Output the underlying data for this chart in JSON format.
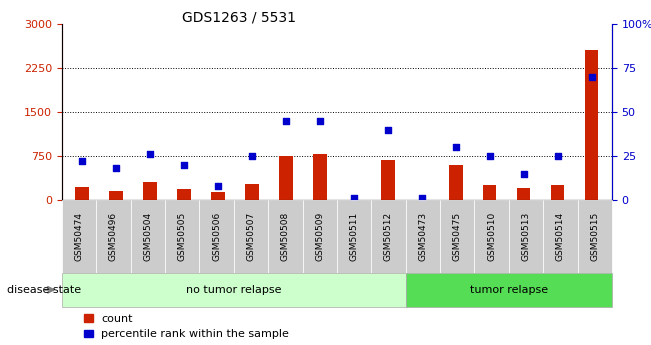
{
  "title": "GDS1263 / 5531",
  "samples": [
    "GSM50474",
    "GSM50496",
    "GSM50504",
    "GSM50505",
    "GSM50506",
    "GSM50507",
    "GSM50508",
    "GSM50509",
    "GSM50511",
    "GSM50512",
    "GSM50473",
    "GSM50475",
    "GSM50510",
    "GSM50513",
    "GSM50514",
    "GSM50515"
  ],
  "counts": [
    220,
    160,
    310,
    190,
    130,
    270,
    760,
    790,
    5,
    680,
    5,
    590,
    260,
    200,
    260,
    2560
  ],
  "percentiles": [
    22,
    18,
    26,
    20,
    8,
    25,
    45,
    45,
    1,
    40,
    1,
    30,
    25,
    15,
    25,
    70
  ],
  "no_tumor_relapse_count": 10,
  "tumor_relapse_count": 6,
  "left_ylim": [
    0,
    3000
  ],
  "right_ylim": [
    0,
    100
  ],
  "left_yticks": [
    0,
    750,
    1500,
    2250,
    3000
  ],
  "right_yticks": [
    0,
    25,
    50,
    75,
    100
  ],
  "right_yticklabels": [
    "0",
    "25",
    "50",
    "75",
    "100%"
  ],
  "bar_color": "#cc2200",
  "dot_color": "#0000cc",
  "no_relapse_bg": "#ccffcc",
  "relapse_bg": "#55dd55",
  "disease_state_label": "disease state",
  "no_relapse_label": "no tumor relapse",
  "relapse_label": "tumor relapse",
  "legend_count": "count",
  "legend_percentile": "percentile rank within the sample",
  "grid_color": "#000000",
  "tick_color_left": "#cc2200",
  "tick_color_right": "#0000cc",
  "bar_width": 0.4,
  "sample_box_color": "#cccccc",
  "white": "#ffffff"
}
